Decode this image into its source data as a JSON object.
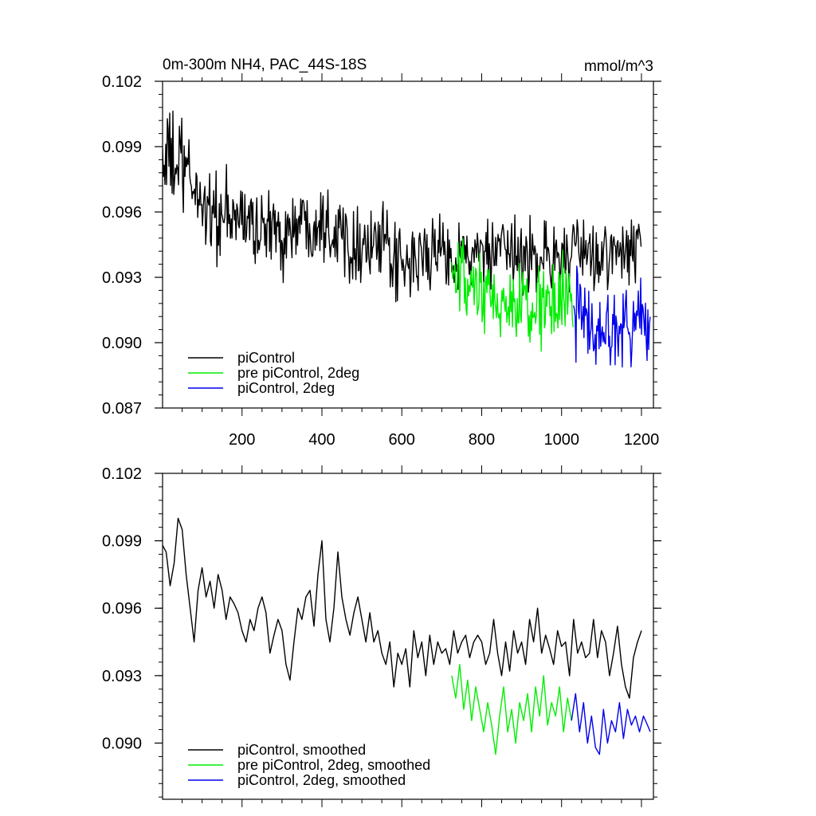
{
  "chart_data": [
    {
      "id": "raw",
      "type": "line",
      "title": "0m-300m NH4, PAC_44S-18S",
      "units": "mmol/m^3",
      "xlabel": "",
      "ylabel": "",
      "xlim": [
        1,
        1230
      ],
      "ylim": [
        0.087,
        0.102
      ],
      "xticks": [
        200,
        400,
        600,
        800,
        1000,
        1200
      ],
      "xtick_labels": [
        "200",
        "400",
        "600",
        "800",
        "1000",
        "1200"
      ],
      "yticks": [
        0.087,
        0.09,
        0.093,
        0.096,
        0.099,
        0.102
      ],
      "ytick_labels": [
        "0.087",
        "0.090",
        "0.093",
        "0.096",
        "0.099",
        "0.102"
      ],
      "legend_position": "bottom-left",
      "noise": true,
      "series": [
        {
          "name": "piControl",
          "color": "#000000",
          "x": [
            1,
            50,
            100,
            150,
            200,
            250,
            300,
            350,
            400,
            450,
            500,
            550,
            600,
            650,
            700,
            750,
            800,
            850,
            900,
            950,
            1000,
            1050,
            1100,
            1150,
            1200
          ],
          "mean": [
            0.0985,
            0.098,
            0.0965,
            0.0955,
            0.0958,
            0.0952,
            0.095,
            0.0955,
            0.0958,
            0.095,
            0.0945,
            0.0945,
            0.0932,
            0.094,
            0.0942,
            0.094,
            0.094,
            0.094,
            0.094,
            0.094,
            0.094,
            0.094,
            0.094,
            0.094,
            0.0945
          ],
          "amp": [
            0.002,
            0.002,
            0.0018,
            0.0018,
            0.0016,
            0.0016,
            0.0016,
            0.0016,
            0.0016,
            0.0016,
            0.0015,
            0.0015,
            0.0015,
            0.0014,
            0.0014,
            0.0014,
            0.0014,
            0.0014,
            0.0014,
            0.0014,
            0.0014,
            0.0014,
            0.0014,
            0.0014,
            0.0014
          ]
        },
        {
          "name": "pre piControl, 2deg",
          "color": "#00ee00",
          "x": [
            725,
            800,
            850,
            900,
            950,
            1000,
            1030
          ],
          "mean": [
            0.093,
            0.092,
            0.0918,
            0.0915,
            0.0918,
            0.0918,
            0.092
          ],
          "amp": [
            0.0016,
            0.0016,
            0.0016,
            0.0016,
            0.0016,
            0.0016,
            0.0016
          ]
        },
        {
          "name": "piControl, 2deg",
          "color": "#0000ee",
          "x": [
            1030,
            1080,
            1130,
            1180,
            1222
          ],
          "mean": [
            0.0915,
            0.0905,
            0.0908,
            0.091,
            0.0908
          ],
          "amp": [
            0.0016,
            0.0016,
            0.0016,
            0.0016,
            0.0016
          ]
        }
      ]
    },
    {
      "id": "smoothed",
      "type": "line",
      "title": "",
      "xlabel": "",
      "ylabel": "",
      "xlim": [
        1,
        1230
      ],
      "ylim": [
        0.0875,
        0.102
      ],
      "xticks": [
        200,
        400,
        600,
        800,
        1000,
        1200
      ],
      "xtick_labels": [],
      "yticks": [
        0.09,
        0.093,
        0.096,
        0.099,
        0.102
      ],
      "ytick_labels": [
        "0.090",
        "0.093",
        "0.096",
        "0.099",
        "0.102"
      ],
      "legend_position": "bottom-left",
      "noise": false,
      "series": [
        {
          "name": "piControl, smoothed",
          "color": "#000000",
          "x": [
            1,
            10,
            20,
            30,
            40,
            50,
            60,
            70,
            80,
            90,
            100,
            110,
            120,
            130,
            140,
            150,
            160,
            170,
            180,
            190,
            200,
            210,
            220,
            230,
            240,
            250,
            260,
            270,
            280,
            290,
            300,
            310,
            320,
            330,
            340,
            350,
            360,
            370,
            380,
            390,
            400,
            410,
            420,
            430,
            440,
            450,
            460,
            470,
            480,
            490,
            500,
            510,
            520,
            530,
            540,
            550,
            560,
            570,
            580,
            590,
            600,
            610,
            620,
            630,
            640,
            650,
            660,
            670,
            680,
            690,
            700,
            710,
            720,
            730,
            740,
            750,
            760,
            770,
            780,
            790,
            800,
            810,
            820,
            830,
            840,
            850,
            860,
            870,
            880,
            890,
            900,
            910,
            920,
            930,
            940,
            950,
            960,
            970,
            980,
            990,
            1000,
            1010,
            1020,
            1030,
            1040,
            1050,
            1060,
            1070,
            1080,
            1090,
            1100,
            1110,
            1120,
            1130,
            1140,
            1150,
            1160,
            1170,
            1180,
            1190,
            1200
          ],
          "y": [
            0.0988,
            0.0985,
            0.097,
            0.098,
            0.1,
            0.0995,
            0.0975,
            0.096,
            0.0945,
            0.0968,
            0.0978,
            0.0965,
            0.0972,
            0.096,
            0.0975,
            0.0968,
            0.0955,
            0.0965,
            0.0962,
            0.0958,
            0.095,
            0.0945,
            0.0955,
            0.095,
            0.096,
            0.0965,
            0.0958,
            0.094,
            0.0948,
            0.0955,
            0.095,
            0.0935,
            0.0928,
            0.0945,
            0.096,
            0.0955,
            0.0965,
            0.0968,
            0.0952,
            0.0975,
            0.099,
            0.0955,
            0.0945,
            0.096,
            0.0985,
            0.0965,
            0.0955,
            0.0948,
            0.0958,
            0.0965,
            0.0955,
            0.0945,
            0.0958,
            0.0945,
            0.095,
            0.094,
            0.0935,
            0.0945,
            0.0925,
            0.094,
            0.0935,
            0.0942,
            0.0925,
            0.095,
            0.0938,
            0.0945,
            0.093,
            0.0948,
            0.0935,
            0.0945,
            0.094,
            0.0942,
            0.0935,
            0.095,
            0.094,
            0.0945,
            0.0948,
            0.0938,
            0.0945,
            0.0948,
            0.0945,
            0.0935,
            0.094,
            0.0955,
            0.094,
            0.093,
            0.0945,
            0.0932,
            0.095,
            0.094,
            0.0945,
            0.0935,
            0.0955,
            0.0945,
            0.096,
            0.094,
            0.0948,
            0.0942,
            0.0935,
            0.095,
            0.0943,
            0.0945,
            0.093,
            0.0955,
            0.094,
            0.0945,
            0.0938,
            0.094,
            0.0955,
            0.0938,
            0.095,
            0.0945,
            0.093,
            0.094,
            0.0952,
            0.0935,
            0.0925,
            0.092,
            0.0938,
            0.0945,
            0.095
          ]
        },
        {
          "name": "pre piControl, 2deg, smoothed",
          "color": "#00ee00",
          "x": [
            725,
            735,
            745,
            755,
            765,
            775,
            785,
            795,
            805,
            815,
            825,
            835,
            845,
            855,
            865,
            875,
            885,
            895,
            905,
            915,
            925,
            935,
            945,
            955,
            965,
            975,
            985,
            995,
            1005,
            1015,
            1025
          ],
          "y": [
            0.093,
            0.092,
            0.0935,
            0.0915,
            0.0928,
            0.091,
            0.0925,
            0.0915,
            0.0905,
            0.0918,
            0.0908,
            0.0895,
            0.0912,
            0.0925,
            0.0905,
            0.0915,
            0.09,
            0.0918,
            0.091,
            0.0922,
            0.0905,
            0.0925,
            0.0912,
            0.093,
            0.0908,
            0.0918,
            0.0912,
            0.0925,
            0.0905,
            0.092,
            0.091
          ]
        },
        {
          "name": "piControl, 2deg, smoothed",
          "color": "#0000ee",
          "x": [
            1025,
            1035,
            1045,
            1055,
            1065,
            1075,
            1085,
            1095,
            1105,
            1115,
            1125,
            1135,
            1145,
            1155,
            1165,
            1175,
            1185,
            1195,
            1205,
            1215,
            1222
          ],
          "y": [
            0.091,
            0.0922,
            0.0905,
            0.0918,
            0.09,
            0.0912,
            0.0898,
            0.0895,
            0.0915,
            0.09,
            0.091,
            0.0905,
            0.0918,
            0.0902,
            0.0915,
            0.0908,
            0.0912,
            0.0905,
            0.0912,
            0.0908,
            0.0905
          ]
        }
      ]
    }
  ]
}
